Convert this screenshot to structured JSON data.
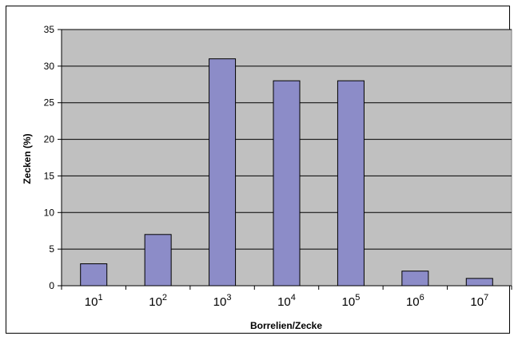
{
  "chart_data": {
    "type": "bar",
    "categories": [
      {
        "base": "10",
        "exp": "1"
      },
      {
        "base": "10",
        "exp": "2"
      },
      {
        "base": "10",
        "exp": "3"
      },
      {
        "base": "10",
        "exp": "4"
      },
      {
        "base": "10",
        "exp": "5"
      },
      {
        "base": "10",
        "exp": "6"
      },
      {
        "base": "10",
        "exp": "7"
      }
    ],
    "values": [
      3,
      7,
      31,
      28,
      28,
      2,
      1
    ],
    "xlabel": "Borrelien/Zecke",
    "ylabel": "Zecken (%)",
    "ylim": [
      0,
      35
    ],
    "yticks": [
      0,
      5,
      10,
      15,
      20,
      25,
      30,
      35
    ],
    "grid": true,
    "colors": {
      "bar_fill": "#8c8cc8",
      "bar_stroke": "#000000",
      "plot_background": "#c0c0c0",
      "gridline": "#000000"
    }
  }
}
